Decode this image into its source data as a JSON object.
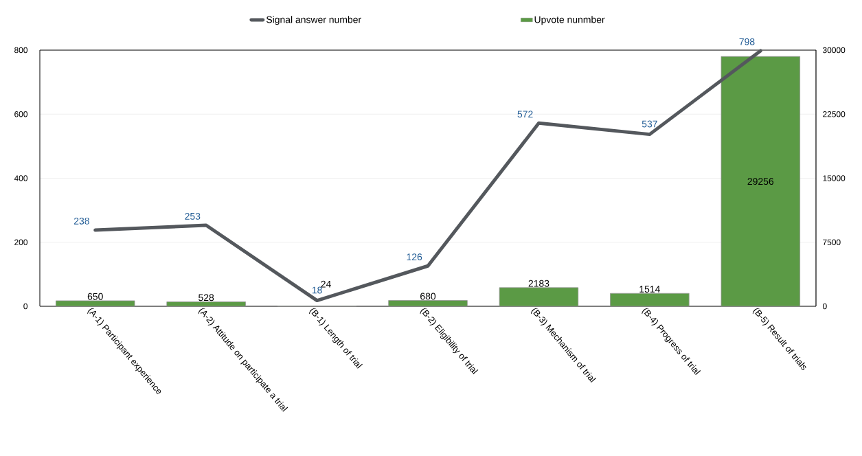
{
  "chart_data": {
    "type": "bar",
    "categories": [
      "(A-1) Participant experience",
      "(A-2) Attitude on participate a trial",
      "(B-1) Length of trial",
      "(B-2) Eligibility of trial",
      "(B-3) Mechanism of trial",
      "(B-4) Progress of trial",
      "(B-5) Result of trials"
    ],
    "series": [
      {
        "name": "Signal answer number",
        "type": "line",
        "color": "#54585d",
        "values": [
          238,
          253,
          18,
          126,
          572,
          537,
          798
        ]
      },
      {
        "name": "Upvote nunmber",
        "type": "bar",
        "axis": "y2",
        "color": "#5b9a45",
        "values": [
          650,
          528,
          24,
          680,
          2183,
          1514,
          29256
        ]
      }
    ],
    "ylim": [
      0,
      800
    ],
    "yticks": [
      0,
      200,
      400,
      600,
      800
    ],
    "y2lim": [
      0,
      30000
    ],
    "y2ticks": [
      0,
      7500,
      15000,
      22500,
      30000
    ],
    "grid": "y",
    "legend": "top",
    "data_labels": true,
    "marker": "none"
  }
}
